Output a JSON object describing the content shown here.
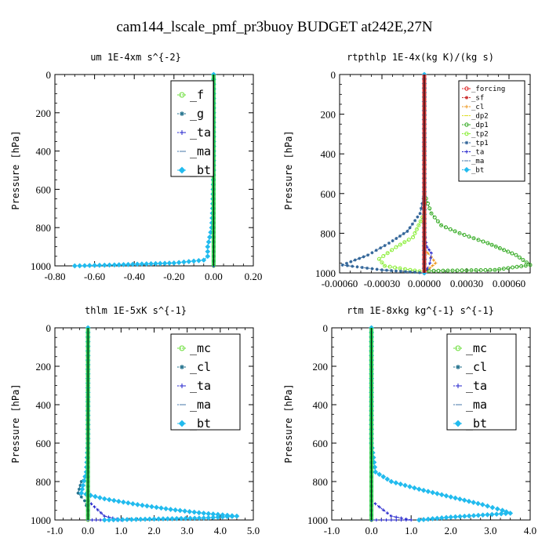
{
  "suptitle": "cam144_lscale_pmf_pr3buoy  BUDGET at242E,27N",
  "chart_data": [
    {
      "type": "line",
      "title": "um  1E-4xm s^{-2}",
      "ylabel": "Pressure [hPa]",
      "xlim": [
        -0.8,
        0.2
      ],
      "ylim": [
        1000,
        0
      ],
      "xticks": [
        "-0.80",
        "-0.60",
        "-0.40",
        "-0.20",
        "0.00",
        "0.20"
      ],
      "xtick_values": [
        -0.8,
        -0.6,
        -0.4,
        -0.2,
        0.0,
        0.2
      ],
      "yticks": [
        "0",
        "200",
        "400",
        "600",
        "800",
        "1000"
      ],
      "ytick_values": [
        0,
        200,
        400,
        600,
        800,
        1000
      ],
      "legend_position": "top-right",
      "series": [
        {
          "name": "_f",
          "color": "#66dd33",
          "marker": "circle",
          "x": [
            0,
            0,
            0,
            0,
            0,
            0,
            0,
            0,
            0,
            0,
            0
          ],
          "y": [
            0,
            100,
            200,
            300,
            400,
            500,
            600,
            700,
            800,
            900,
            1000
          ]
        },
        {
          "name": "_g",
          "color": "#1f6f8b",
          "marker": "star",
          "x": [
            0,
            0,
            0,
            0,
            0,
            0,
            0
          ],
          "y": [
            0,
            200,
            400,
            600,
            800,
            900,
            1000
          ]
        },
        {
          "name": "_ta",
          "color": "#2222cc",
          "marker": "plus",
          "x": [
            0,
            0,
            0,
            0,
            0,
            0
          ],
          "y": [
            0,
            200,
            400,
            600,
            800,
            1000
          ]
        },
        {
          "name": "_ma",
          "color": "#4477aa",
          "marker": "dash",
          "x": [
            0,
            0,
            0,
            0,
            0,
            0
          ],
          "y": [
            0,
            200,
            400,
            600,
            800,
            1000
          ]
        },
        {
          "name": "_bt",
          "color": "#22bbee",
          "marker": "diamond",
          "x": [
            0,
            0,
            0,
            -0.005,
            -0.01,
            -0.02,
            -0.03,
            -0.03,
            -0.05,
            -0.2,
            -0.5,
            -0.7
          ],
          "y": [
            0,
            200,
            500,
            700,
            800,
            850,
            900,
            950,
            970,
            985,
            995,
            1000
          ]
        }
      ],
      "black_line": {
        "x": [
          0,
          0
        ],
        "y": [
          0,
          1000
        ]
      }
    },
    {
      "type": "line",
      "title": "rtpthlp  1E-4x(kg K)/(kg s)",
      "ylabel": "Pressure [hPa]",
      "xlim": [
        -0.0006,
        0.00075
      ],
      "ylim": [
        1000,
        0
      ],
      "xticks": [
        "-0.00060",
        "-0.00030",
        "0.00000",
        "0.00030",
        "0.00060"
      ],
      "xtick_values": [
        -0.0006,
        -0.0003,
        0,
        0.0003,
        0.0006
      ],
      "yticks": [
        "0",
        "200",
        "400",
        "600",
        "800",
        "1000"
      ],
      "ytick_values": [
        0,
        200,
        400,
        600,
        800,
        1000
      ],
      "legend_position": "top-right",
      "series": [
        {
          "name": "_forcing",
          "color": "#dd2222",
          "marker": "circle",
          "x": [
            0,
            0,
            0,
            0,
            0,
            0,
            0
          ],
          "y": [
            0,
            200,
            400,
            600,
            800,
            900,
            1000
          ]
        },
        {
          "name": "_sf",
          "color": "#cc3333",
          "marker": "star",
          "x": [
            0,
            0,
            0,
            0,
            0
          ],
          "y": [
            0,
            250,
            500,
            750,
            1000
          ]
        },
        {
          "name": "_cl",
          "color": "#ee9922",
          "marker": "plus",
          "x": [
            0,
            0,
            0,
            0,
            5e-05,
            8e-05,
            4e-05,
            0
          ],
          "y": [
            0,
            400,
            800,
            880,
            920,
            950,
            975,
            1000
          ]
        },
        {
          "name": "_dp2",
          "color": "#dddd22",
          "marker": "dash",
          "x": [
            0,
            0,
            0,
            0
          ],
          "y": [
            0,
            400,
            800,
            1000
          ]
        },
        {
          "name": "_dp1",
          "color": "#33aa22",
          "marker": "circle",
          "x": [
            0,
            5e-05,
            0.00012,
            0.00025,
            0.00045,
            0.00065,
            0.00075,
            0.0005,
            0
          ],
          "y": [
            600,
            700,
            760,
            800,
            850,
            910,
            960,
            985,
            990
          ]
        },
        {
          "name": "_tp2",
          "color": "#88ee33",
          "marker": "circle",
          "x": [
            0,
            -8e-05,
            -0.0002,
            -0.00032,
            -0.00028,
            -0.0001,
            0
          ],
          "y": [
            700,
            820,
            870,
            930,
            965,
            985,
            995
          ]
        },
        {
          "name": "_tp1",
          "color": "#336699",
          "marker": "star",
          "x": [
            0,
            -3e-05,
            -0.00012,
            -0.00025,
            -0.0004,
            -0.00058,
            -0.0003,
            -0.0001,
            0
          ],
          "y": [
            600,
            700,
            790,
            850,
            910,
            960,
            985,
            995,
            1000
          ]
        },
        {
          "name": "_ta",
          "color": "#2222cc",
          "marker": "plus",
          "x": [
            0,
            2e-05,
            5e-05,
            4e-05,
            2e-05,
            0
          ],
          "y": [
            800,
            870,
            900,
            950,
            980,
            1000
          ]
        },
        {
          "name": "_ma",
          "color": "#4477aa",
          "marker": "dash",
          "x": [
            0,
            0,
            0,
            0
          ],
          "y": [
            0,
            400,
            800,
            1000
          ]
        },
        {
          "name": "_bt",
          "color": "#22bbee",
          "marker": "diamond",
          "x": [
            0,
            0,
            0,
            0,
            0
          ],
          "y": [
            0,
            250,
            500,
            750,
            1000
          ]
        }
      ],
      "black_line": {
        "x": [
          0,
          0
        ],
        "y": [
          0,
          1000
        ]
      }
    },
    {
      "type": "line",
      "title": "thlm  1E-5xK s^{-1}",
      "ylabel": "Pressure [hPa]",
      "xlim": [
        -1.0,
        5.0
      ],
      "ylim": [
        1000,
        0
      ],
      "xticks": [
        "-1.0",
        "0.0",
        "1.0",
        "2.0",
        "3.0",
        "4.0",
        "5.0"
      ],
      "xtick_values": [
        -1,
        0,
        1,
        2,
        3,
        4,
        5
      ],
      "yticks": [
        "0",
        "200",
        "400",
        "600",
        "800",
        "1000"
      ],
      "ytick_values": [
        0,
        200,
        400,
        600,
        800,
        1000
      ],
      "legend_position": "top-right",
      "series": [
        {
          "name": "_mc",
          "color": "#66dd33",
          "marker": "circle",
          "x": [
            0,
            0,
            0,
            0,
            0,
            0,
            0,
            0,
            0,
            0,
            0
          ],
          "y": [
            0,
            100,
            200,
            300,
            400,
            500,
            600,
            700,
            800,
            900,
            1000
          ]
        },
        {
          "name": "_cl",
          "color": "#1f6f8b",
          "marker": "star",
          "x": [
            0,
            0,
            0,
            -0.2,
            -0.3,
            -0.1,
            0
          ],
          "y": [
            0,
            400,
            750,
            800,
            860,
            900,
            950
          ]
        },
        {
          "name": "_ta",
          "color": "#2222cc",
          "marker": "plus",
          "x": [
            0,
            0,
            0.5,
            1.0,
            0.5,
            0
          ],
          "y": [
            0,
            900,
            980,
            1000,
            1000,
            1000
          ]
        },
        {
          "name": "_ma",
          "color": "#4477aa",
          "marker": "dash",
          "x": [
            0,
            0,
            0,
            0
          ],
          "y": [
            0,
            400,
            800,
            1000
          ]
        },
        {
          "name": "_bt",
          "color": "#22bbee",
          "marker": "diamond",
          "x": [
            0,
            0,
            -0.05,
            -0.15,
            -0.2,
            0.5,
            1.5,
            2.5,
            3.5,
            4.5,
            3.5,
            2.0,
            0.5
          ],
          "y": [
            0,
            600,
            750,
            820,
            860,
            890,
            920,
            945,
            965,
            980,
            990,
            995,
            1000
          ]
        }
      ],
      "black_line": {
        "x": [
          0,
          0
        ],
        "y": [
          0,
          1000
        ]
      }
    },
    {
      "type": "line",
      "title": "rtm  1E-8xkg kg^{-1} s^{-1}",
      "ylabel": "Pressure [hPa]",
      "xlim": [
        -1.0,
        4.0
      ],
      "ylim": [
        1000,
        0
      ],
      "xticks": [
        "-1.0",
        "0.0",
        "1.0",
        "2.0",
        "3.0",
        "4.0"
      ],
      "xtick_values": [
        -1,
        0,
        1,
        2,
        3,
        4
      ],
      "yticks": [
        "0",
        "200",
        "400",
        "600",
        "800",
        "1000"
      ],
      "ytick_values": [
        0,
        200,
        400,
        600,
        800,
        1000
      ],
      "legend_position": "top-right",
      "series": [
        {
          "name": "_mc",
          "color": "#66dd33",
          "marker": "circle",
          "x": [
            0,
            0,
            0,
            0,
            0,
            0,
            0,
            0,
            0,
            0,
            0
          ],
          "y": [
            0,
            100,
            200,
            300,
            400,
            500,
            600,
            700,
            800,
            900,
            1000
          ]
        },
        {
          "name": "_cl",
          "color": "#1f6f8b",
          "marker": "star",
          "x": [
            0,
            0,
            0,
            0
          ],
          "y": [
            0,
            400,
            800,
            1000
          ]
        },
        {
          "name": "_ta",
          "color": "#2222cc",
          "marker": "plus",
          "x": [
            0,
            0,
            0.5,
            1.0,
            0.5,
            0
          ],
          "y": [
            0,
            900,
            980,
            1000,
            1000,
            1000
          ]
        },
        {
          "name": "_ma",
          "color": "#4477aa",
          "marker": "dash",
          "x": [
            0,
            0,
            0,
            0
          ],
          "y": [
            0,
            400,
            800,
            1000
          ]
        },
        {
          "name": "_bt",
          "color": "#22bbee",
          "marker": "diamond",
          "x": [
            0,
            0,
            0.1,
            0.5,
            1.2,
            2.0,
            2.8,
            3.3,
            3.5,
            2.0,
            1.2
          ],
          "y": [
            0,
            600,
            750,
            800,
            840,
            880,
            920,
            950,
            965,
            985,
            1000
          ]
        }
      ],
      "black_line": {
        "x": [
          0,
          0
        ],
        "y": [
          0,
          1000
        ]
      }
    }
  ]
}
